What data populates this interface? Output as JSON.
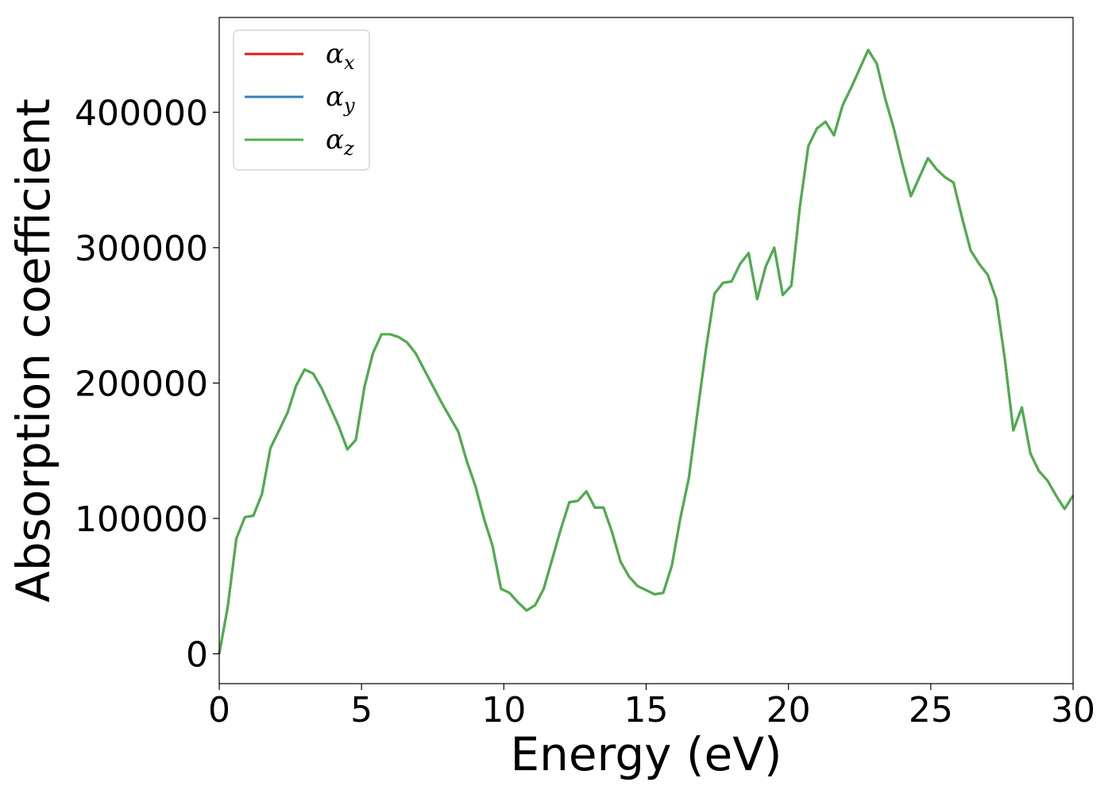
{
  "chart_data": {
    "type": "line",
    "xlabel": "Energy (eV)",
    "ylabel": "Absorption coefficient",
    "xlim": [
      0,
      30
    ],
    "ylim": [
      -22000,
      470000
    ],
    "x_ticks": [
      0,
      5,
      10,
      15,
      20,
      25,
      30
    ],
    "x_tick_labels": [
      "0",
      "5",
      "10",
      "15",
      "20",
      "25",
      "30"
    ],
    "y_ticks": [
      0,
      100000,
      200000,
      300000,
      400000
    ],
    "y_tick_labels": [
      "0",
      "100000",
      "200000",
      "300000",
      "400000"
    ],
    "grid": false,
    "legend_position": "top-left",
    "x": [
      0,
      0.3,
      0.6,
      0.9,
      1.2,
      1.5,
      1.8,
      2.1,
      2.4,
      2.7,
      3.0,
      3.3,
      3.6,
      3.9,
      4.2,
      4.5,
      4.8,
      5.1,
      5.4,
      5.7,
      6.0,
      6.3,
      6.6,
      6.9,
      7.2,
      7.5,
      7.8,
      8.1,
      8.4,
      8.7,
      9.0,
      9.3,
      9.6,
      9.9,
      10.2,
      10.5,
      10.8,
      11.1,
      11.4,
      11.7,
      12.0,
      12.3,
      12.6,
      12.9,
      13.2,
      13.5,
      13.8,
      14.1,
      14.4,
      14.7,
      15.0,
      15.3,
      15.6,
      15.9,
      16.2,
      16.5,
      16.8,
      17.1,
      17.4,
      17.7,
      18.0,
      18.3,
      18.6,
      18.9,
      19.2,
      19.5,
      19.8,
      20.1,
      20.4,
      20.7,
      21.0,
      21.3,
      21.6,
      21.9,
      22.2,
      22.5,
      22.8,
      23.1,
      23.4,
      23.7,
      24.0,
      24.3,
      24.6,
      24.9,
      25.2,
      25.5,
      25.8,
      26.1,
      26.4,
      26.7,
      27.0,
      27.3,
      27.6,
      27.9,
      28.2,
      28.5,
      28.8,
      29.1,
      29.4,
      29.7,
      30.0
    ],
    "series": [
      {
        "name": "αx",
        "color": "#e41a1c",
        "values": [
          0,
          35000,
          85000,
          101000,
          102000,
          118000,
          152000,
          165000,
          178000,
          198000,
          210000,
          207000,
          196000,
          182000,
          168000,
          151000,
          158000,
          197000,
          222000,
          236000,
          236000,
          234000,
          230000,
          222000,
          210000,
          198000,
          186000,
          175000,
          164000,
          142000,
          124000,
          100000,
          80000,
          48000,
          45000,
          38000,
          32000,
          36000,
          48000,
          70000,
          92000,
          112000,
          113000,
          120000,
          108000,
          108000,
          90000,
          68000,
          57000,
          50000,
          47000,
          44000,
          45000,
          65000,
          100000,
          130000,
          178000,
          225000,
          266000,
          274000,
          275000,
          288000,
          296000,
          262000,
          286000,
          300000,
          265000,
          272000,
          330000,
          375000,
          388000,
          393000,
          383000,
          405000,
          418000,
          432000,
          446000,
          436000,
          410000,
          388000,
          362000,
          338000,
          352000,
          366000,
          358000,
          352000,
          348000,
          322000,
          298000,
          288000,
          280000,
          262000,
          218000,
          165000,
          182000,
          148000,
          135000,
          128000,
          117000,
          107000,
          117000
        ]
      },
      {
        "name": "αy",
        "color": "#377eb8",
        "values": [
          0,
          35000,
          85000,
          101000,
          102000,
          118000,
          152000,
          165000,
          178000,
          198000,
          210000,
          207000,
          196000,
          182000,
          168000,
          151000,
          158000,
          197000,
          222000,
          236000,
          236000,
          234000,
          230000,
          222000,
          210000,
          198000,
          186000,
          175000,
          164000,
          142000,
          124000,
          100000,
          80000,
          48000,
          45000,
          38000,
          32000,
          36000,
          48000,
          70000,
          92000,
          112000,
          113000,
          120000,
          108000,
          108000,
          90000,
          68000,
          57000,
          50000,
          47000,
          44000,
          45000,
          65000,
          100000,
          130000,
          178000,
          225000,
          266000,
          274000,
          275000,
          288000,
          296000,
          262000,
          286000,
          300000,
          265000,
          272000,
          330000,
          375000,
          388000,
          393000,
          383000,
          405000,
          418000,
          432000,
          446000,
          436000,
          410000,
          388000,
          362000,
          338000,
          352000,
          366000,
          358000,
          352000,
          348000,
          322000,
          298000,
          288000,
          280000,
          262000,
          218000,
          165000,
          182000,
          148000,
          135000,
          128000,
          117000,
          107000,
          117000
        ]
      },
      {
        "name": "αz",
        "color": "#4daf4a",
        "values": [
          0,
          35000,
          85000,
          101000,
          102000,
          118000,
          152000,
          165000,
          178000,
          198000,
          210000,
          207000,
          196000,
          182000,
          168000,
          151000,
          158000,
          197000,
          222000,
          236000,
          236000,
          234000,
          230000,
          222000,
          210000,
          198000,
          186000,
          175000,
          164000,
          142000,
          124000,
          100000,
          80000,
          48000,
          45000,
          38000,
          32000,
          36000,
          48000,
          70000,
          92000,
          112000,
          113000,
          120000,
          108000,
          108000,
          90000,
          68000,
          57000,
          50000,
          47000,
          44000,
          45000,
          65000,
          100000,
          130000,
          178000,
          225000,
          266000,
          274000,
          275000,
          288000,
          296000,
          262000,
          286000,
          300000,
          265000,
          272000,
          330000,
          375000,
          388000,
          393000,
          383000,
          405000,
          418000,
          432000,
          446000,
          436000,
          410000,
          388000,
          362000,
          338000,
          352000,
          366000,
          358000,
          352000,
          348000,
          322000,
          298000,
          288000,
          280000,
          262000,
          218000,
          165000,
          182000,
          148000,
          135000,
          128000,
          117000,
          107000,
          117000
        ]
      }
    ],
    "legend": [
      {
        "symbol": "α",
        "subscript": "x",
        "color": "#e41a1c"
      },
      {
        "symbol": "α",
        "subscript": "y",
        "color": "#377eb8"
      },
      {
        "symbol": "α",
        "subscript": "z",
        "color": "#4daf4a"
      }
    ]
  }
}
